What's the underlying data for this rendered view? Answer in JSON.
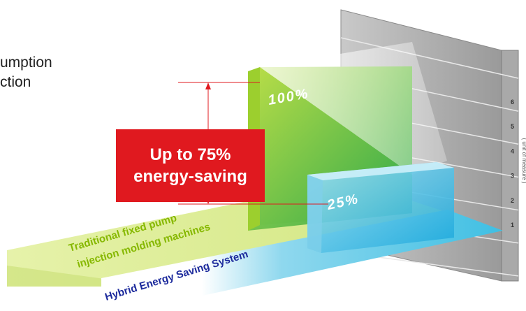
{
  "header": {
    "line1": "umption",
    "line2": "ction"
  },
  "callout": {
    "line1": "Up to 75%",
    "line2": "energy-saving"
  },
  "chart_data": {
    "type": "bar",
    "categories": [
      "Traditional fixed pump injection molding machines",
      "Hybrid Energy Saving System"
    ],
    "category_lines": [
      [
        "Traditional fixed pump",
        "injection molding machines"
      ],
      [
        "Hybrid Energy Saving System"
      ]
    ],
    "values": [
      100,
      25
    ],
    "value_labels": [
      "100%",
      "25%"
    ],
    "scale_ticks": [
      "1",
      "2",
      "3",
      "4",
      "5",
      "6"
    ],
    "side_note": "( unit of measure )",
    "colors": {
      "traditional": "#a7d13a",
      "traditional_floor": "#d9eb8f",
      "hybrid": "#2fb6e0",
      "hybrid_floor": "#5fc7e6",
      "hybrid_label": "#1c2a9c",
      "traditional_label": "#86b800",
      "callout": "#e0191f",
      "wall": "#b8b8b8"
    }
  }
}
